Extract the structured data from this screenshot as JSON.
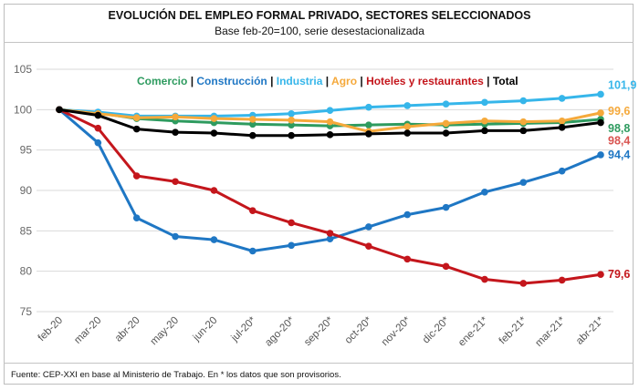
{
  "header": {
    "title": "EVOLUCIÓN DEL EMPLEO FORMAL PRIVADO, SECTORES SELECCIONADOS",
    "subtitle": "Base feb-20=100, serie desestacionalizada"
  },
  "legend": {
    "separator": " | "
  },
  "footer": {
    "source": "Fuente: CEP-XXI en base al Ministerio de Trabajo. En * los datos que son provisorios."
  },
  "chart_data": {
    "type": "line",
    "title": "EVOLUCIÓN DEL EMPLEO FORMAL PRIVADO, SECTORES SELECCIONADOS",
    "subtitle": "Base feb-20=100, serie desestacionalizada",
    "xlabel": "",
    "ylabel": "",
    "ylim": [
      75,
      105
    ],
    "yticks": [
      75,
      80,
      85,
      90,
      95,
      100,
      105
    ],
    "grid": true,
    "legend_position": "top",
    "categories": [
      "feb-20",
      "mar-20",
      "abr-20",
      "may-20",
      "jun-20",
      "jul-20*",
      "ago-20*",
      "sep-20*",
      "oct-20*",
      "nov-20*",
      "dic-20*",
      "ene-21*",
      "feb-21*",
      "mar-21*",
      "abr-21*"
    ],
    "series": [
      {
        "name": "Comercio",
        "color": "#2e9b5f",
        "values": [
          100,
          99.6,
          98.9,
          98.6,
          98.4,
          98.2,
          98.1,
          98.0,
          98.1,
          98.2,
          98.1,
          98.2,
          98.3,
          98.4,
          98.8
        ],
        "end_label": "98,8"
      },
      {
        "name": "Construcción",
        "color": "#1f77c4",
        "values": [
          100,
          95.9,
          86.6,
          84.3,
          83.9,
          82.5,
          83.2,
          84.0,
          85.5,
          87.0,
          87.9,
          89.8,
          91.0,
          92.4,
          94.4
        ],
        "end_label": "94,4"
      },
      {
        "name": "Industria",
        "color": "#36b6ea",
        "values": [
          100,
          99.7,
          99.2,
          99.2,
          99.2,
          99.3,
          99.5,
          99.9,
          100.3,
          100.5,
          100.7,
          100.9,
          101.1,
          101.4,
          101.9
        ],
        "end_label": "101,9"
      },
      {
        "name": "Agro",
        "color": "#f5a93b",
        "values": [
          100,
          99.5,
          99.0,
          99.1,
          98.9,
          98.8,
          98.7,
          98.5,
          97.3,
          97.9,
          98.3,
          98.6,
          98.5,
          98.6,
          99.6
        ],
        "end_label": "99,6"
      },
      {
        "name": "Hoteles y restaurantes",
        "color": "#c4161c",
        "values": [
          100,
          97.7,
          91.8,
          91.1,
          90.0,
          87.5,
          86.0,
          84.7,
          83.1,
          81.5,
          80.6,
          79.0,
          78.5,
          78.9,
          79.6
        ],
        "end_label": "79,6"
      },
      {
        "name": "Total",
        "color": "#000000",
        "values": [
          100,
          99.3,
          97.6,
          97.2,
          97.1,
          96.8,
          96.8,
          96.9,
          97.0,
          97.1,
          97.1,
          97.4,
          97.4,
          97.8,
          98.4
        ],
        "end_label": "98,4",
        "end_label_color": "#d9534f"
      }
    ]
  }
}
